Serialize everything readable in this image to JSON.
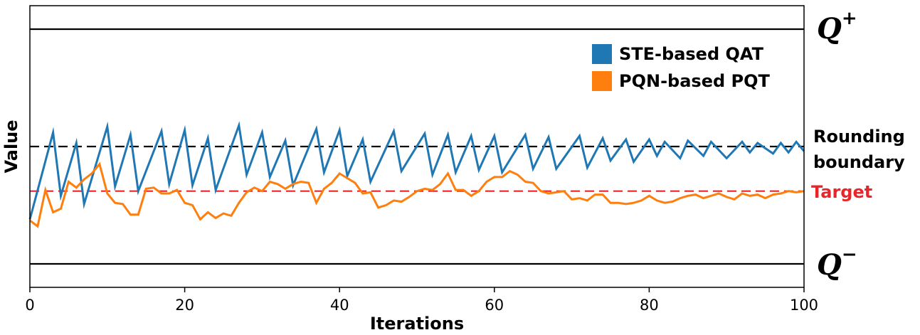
{
  "chart_data": {
    "type": "line",
    "xlabel": "Iterations",
    "ylabel": "Value",
    "xlim": [
      0,
      100
    ],
    "ylim": [
      -1.2,
      1.2
    ],
    "xticks": [
      "0",
      "20",
      "40",
      "60",
      "80",
      "100"
    ],
    "grid": false,
    "legend_position": "top-right",
    "reference_lines": [
      {
        "name": "q_plus",
        "y": 1.0,
        "style": "solid",
        "color": "#000000"
      },
      {
        "name": "rounding_boundary",
        "y": 0.0,
        "style": "dashed",
        "color": "#000000"
      },
      {
        "name": "target",
        "y": -0.38,
        "style": "dashed",
        "color": "#e8262a"
      },
      {
        "name": "q_minus",
        "y": -1.0,
        "style": "solid",
        "color": "#000000"
      }
    ],
    "right_labels": {
      "q_plus": {
        "base": "Q",
        "sup": "+"
      },
      "rounding": [
        "Rounding",
        "boundary"
      ],
      "target": "Target",
      "q_minus": {
        "base": "Q",
        "sup": "−"
      }
    },
    "series": [
      {
        "name": "STE-based QAT",
        "color": "#1f77b4",
        "x": [
          0,
          3,
          4,
          6,
          7,
          10,
          11,
          13,
          14,
          17,
          18,
          20,
          21,
          23,
          24,
          27,
          28,
          30,
          31,
          33,
          34,
          37,
          38,
          40,
          41,
          43,
          44,
          47,
          48,
          51,
          52,
          54,
          55,
          57,
          58,
          60,
          61,
          64,
          65,
          67,
          68,
          71,
          72,
          74,
          75,
          77,
          78,
          80,
          81,
          82,
          84,
          85,
          87,
          88,
          90,
          92,
          93,
          94,
          96,
          97,
          98,
          99,
          100
        ],
        "y": [
          -0.62,
          0.12,
          -0.42,
          0.03,
          -0.49,
          0.17,
          -0.34,
          0.1,
          -0.38,
          0.13,
          -0.32,
          0.14,
          -0.33,
          0.07,
          -0.37,
          0.18,
          -0.24,
          0.12,
          -0.26,
          0.05,
          -0.33,
          0.15,
          -0.22,
          0.14,
          -0.25,
          0.06,
          -0.3,
          0.13,
          -0.21,
          0.11,
          -0.24,
          0.1,
          -0.22,
          0.09,
          -0.2,
          0.09,
          -0.22,
          0.1,
          -0.19,
          0.08,
          -0.19,
          0.09,
          -0.18,
          0.07,
          -0.12,
          0.06,
          -0.13,
          0.06,
          -0.08,
          0.04,
          -0.1,
          0.05,
          -0.08,
          0.04,
          -0.1,
          0.04,
          -0.05,
          0.03,
          -0.06,
          0.03,
          -0.05,
          0.04,
          -0.04
        ]
      },
      {
        "name": "PQN-based PQT",
        "color": "#ff7f0e",
        "x": [
          0,
          1,
          2,
          3,
          4,
          5,
          6,
          7,
          8,
          9,
          10,
          11,
          12,
          13,
          14,
          15,
          16,
          17,
          18,
          19,
          20,
          21,
          22,
          23,
          24,
          25,
          26,
          27,
          28,
          29,
          30,
          31,
          32,
          33,
          34,
          35,
          36,
          37,
          38,
          39,
          40,
          41,
          42,
          43,
          44,
          45,
          46,
          47,
          48,
          49,
          50,
          51,
          52,
          53,
          54,
          55,
          56,
          57,
          58,
          59,
          60,
          61,
          62,
          63,
          64,
          65,
          66,
          67,
          68,
          69,
          70,
          71,
          72,
          73,
          74,
          75,
          76,
          77,
          78,
          79,
          80,
          81,
          82,
          83,
          84,
          85,
          86,
          87,
          88,
          89,
          90,
          91,
          92,
          93,
          94,
          95,
          96,
          97,
          98,
          99,
          100
        ],
        "y": [
          -0.63,
          -0.68,
          -0.37,
          -0.56,
          -0.53,
          -0.3,
          -0.35,
          -0.28,
          -0.23,
          -0.15,
          -0.4,
          -0.48,
          -0.49,
          -0.58,
          -0.58,
          -0.36,
          -0.35,
          -0.4,
          -0.4,
          -0.37,
          -0.48,
          -0.5,
          -0.62,
          -0.56,
          -0.61,
          -0.57,
          -0.59,
          -0.48,
          -0.39,
          -0.35,
          -0.38,
          -0.3,
          -0.32,
          -0.36,
          -0.32,
          -0.3,
          -0.31,
          -0.48,
          -0.36,
          -0.31,
          -0.23,
          -0.27,
          -0.31,
          -0.4,
          -0.39,
          -0.52,
          -0.5,
          -0.46,
          -0.47,
          -0.43,
          -0.38,
          -0.36,
          -0.37,
          -0.32,
          -0.23,
          -0.37,
          -0.37,
          -0.42,
          -0.38,
          -0.3,
          -0.26,
          -0.26,
          -0.21,
          -0.24,
          -0.3,
          -0.31,
          -0.38,
          -0.4,
          -0.39,
          -0.38,
          -0.45,
          -0.44,
          -0.46,
          -0.41,
          -0.41,
          -0.48,
          -0.48,
          -0.49,
          -0.48,
          -0.46,
          -0.42,
          -0.46,
          -0.48,
          -0.47,
          -0.44,
          -0.42,
          -0.41,
          -0.44,
          -0.42,
          -0.4,
          -0.43,
          -0.45,
          -0.4,
          -0.42,
          -0.41,
          -0.44,
          -0.41,
          -0.4,
          -0.38,
          -0.39,
          -0.38
        ]
      }
    ]
  }
}
